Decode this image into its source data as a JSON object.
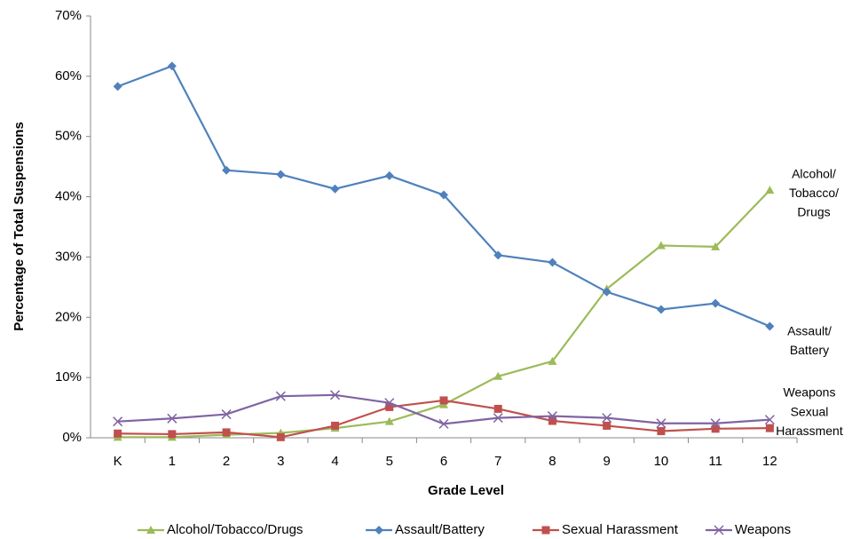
{
  "chart_data": {
    "type": "line",
    "x_label": "Grade Level",
    "y_label": "Percentage of Total Suspensions",
    "categories": [
      "K",
      "1",
      "2",
      "3",
      "4",
      "5",
      "6",
      "7",
      "8",
      "9",
      "10",
      "11",
      "12"
    ],
    "ylim": [
      0,
      70
    ],
    "yticks": [
      {
        "value": 0,
        "label": "0%"
      },
      {
        "value": 10,
        "label": "10%"
      },
      {
        "value": 20,
        "label": "20%"
      },
      {
        "value": 30,
        "label": "30%"
      },
      {
        "value": 40,
        "label": "40%"
      },
      {
        "value": 50,
        "label": "50%"
      },
      {
        "value": 60,
        "label": "60%"
      },
      {
        "value": 70,
        "label": "70%"
      }
    ],
    "grid": false,
    "legend": "bottom",
    "series": [
      {
        "name": "Alcohol/Tobacco/Drugs",
        "color": "#9bbb59",
        "marker": "triangle",
        "values": [
          0.1,
          0.1,
          0.5,
          0.8,
          1.6,
          2.7,
          5.5,
          10.2,
          12.7,
          24.7,
          31.9,
          31.7,
          41.1
        ]
      },
      {
        "name": "Assault/Battery",
        "color": "#4f81bd",
        "marker": "diamond",
        "values": [
          58.3,
          61.7,
          44.4,
          43.7,
          41.3,
          43.5,
          40.3,
          30.3,
          29.1,
          24.2,
          21.3,
          22.3,
          18.5
        ]
      },
      {
        "name": "Sexual Harassment",
        "color": "#c0504d",
        "marker": "square",
        "values": [
          0.7,
          0.6,
          0.9,
          0.1,
          2.0,
          5.1,
          6.2,
          4.8,
          2.8,
          2.0,
          1.1,
          1.5,
          1.6
        ]
      },
      {
        "name": "Weapons",
        "color": "#8064a2",
        "marker": "x",
        "values": [
          2.7,
          3.2,
          3.9,
          6.9,
          7.1,
          5.8,
          2.3,
          3.3,
          3.6,
          3.3,
          2.4,
          2.4,
          3.0
        ]
      }
    ],
    "annotations": [
      {
        "lines": [
          "Alcohol/",
          "Tobacco/",
          "Drugs"
        ]
      },
      {
        "lines": [
          "Assault/",
          "Battery"
        ]
      },
      {
        "lines": [
          "Weapons"
        ]
      },
      {
        "lines": [
          "Sexual",
          "Harassment"
        ]
      }
    ]
  }
}
